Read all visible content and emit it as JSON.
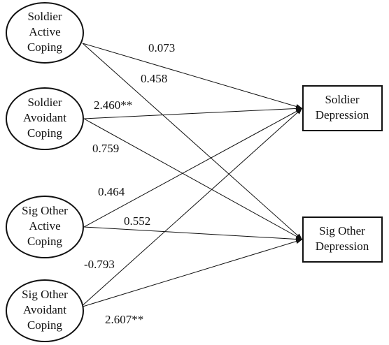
{
  "nodes": [
    {
      "label": [
        "Soldier",
        "Active",
        "Coping"
      ]
    },
    {
      "label": [
        "Soldier",
        "Avoidant",
        "Coping"
      ]
    },
    {
      "label": [
        "Sig Other",
        "Active",
        "Coping"
      ]
    },
    {
      "label": [
        "Sig Other",
        "Avoidant",
        "Coping"
      ]
    },
    {
      "label": [
        "Soldier",
        "Depression"
      ]
    },
    {
      "label": [
        "Sig Other",
        "Depression"
      ]
    }
  ],
  "edges": [
    {
      "label": "0.073"
    },
    {
      "label": "0.458"
    },
    {
      "label": "2.460**"
    },
    {
      "label": "0.759"
    },
    {
      "label": "0.464"
    },
    {
      "label": "0.552"
    },
    {
      "label": "-0.793"
    },
    {
      "label": "2.607**"
    }
  ]
}
